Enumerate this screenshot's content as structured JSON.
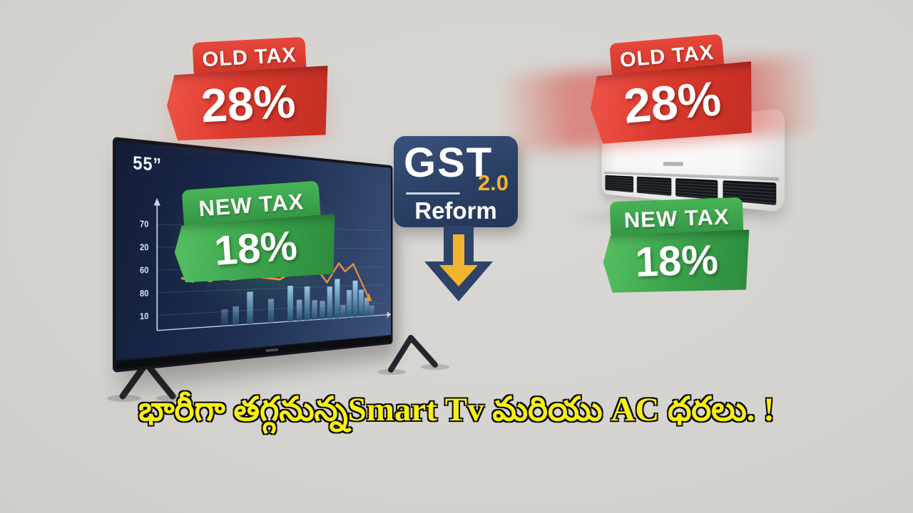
{
  "background_color": "#d6d4d0",
  "caption": {
    "text": "భారీగా తగ్గనున్నSmart Tv మరియు AC ధరలు. !",
    "color": "#f6ee17"
  },
  "gst_badge": {
    "title": "GST",
    "version": "2.0",
    "subtitle": "Reform",
    "arrow_icon": "down-arrow",
    "bg_color": "#2e4368",
    "accent_color": "#f2b42d"
  },
  "tv": {
    "screen_size_label": "55”",
    "old_tax_badge": {
      "label": "OLD TAX",
      "value": "28%",
      "color": "#d93a2e"
    },
    "new_tax_badge": {
      "label": "NEW TAX",
      "value": "18%",
      "color": "#3aa24a"
    }
  },
  "ac": {
    "old_tax_badge": {
      "label": "OLD TAX",
      "value": "28%",
      "color": "#d93a2e"
    },
    "new_tax_badge": {
      "label": "NEW TAX",
      "value": "18%",
      "color": "#3aa24a"
    }
  },
  "chart_data": {
    "type": "bar",
    "title": "",
    "xlabel": "",
    "ylabel": "",
    "y_ticks": [
      {
        "label": "70",
        "pos": 84
      },
      {
        "label": "20",
        "pos": 66
      },
      {
        "label": "60",
        "pos": 48
      },
      {
        "label": "80",
        "pos": 30
      },
      {
        "label": "10",
        "pos": 12
      }
    ],
    "bars": [
      {
        "x": 0.25,
        "v": 14,
        "o": 0.35
      },
      {
        "x": 0.295,
        "v": 16,
        "o": 0.5
      },
      {
        "x": 0.353,
        "v": 28,
        "o": 0.8
      },
      {
        "x": 0.442,
        "v": 21,
        "o": 0.55
      },
      {
        "x": 0.527,
        "v": 32,
        "o": 0.9
      },
      {
        "x": 0.568,
        "v": 19,
        "o": 0.7
      },
      {
        "x": 0.604,
        "v": 31,
        "o": 0.85
      },
      {
        "x": 0.639,
        "v": 18,
        "o": 0.6
      },
      {
        "x": 0.676,
        "v": 17,
        "o": 0.6
      },
      {
        "x": 0.712,
        "v": 30,
        "o": 0.9
      },
      {
        "x": 0.749,
        "v": 37,
        "o": 0.95
      },
      {
        "x": 0.778,
        "v": 12,
        "o": 0.5
      },
      {
        "x": 0.809,
        "v": 26,
        "o": 0.8
      },
      {
        "x": 0.84,
        "v": 35,
        "o": 0.95
      },
      {
        "x": 0.871,
        "v": 26,
        "o": 0.8
      },
      {
        "x": 0.9,
        "v": 18,
        "o": 0.7
      },
      {
        "x": 0.927,
        "v": 10,
        "o": 0.45
      }
    ],
    "line": [
      {
        "x": 0.089,
        "v": 41
      },
      {
        "x": 0.127,
        "v": 38
      },
      {
        "x": 0.16,
        "v": 41
      },
      {
        "x": 0.193,
        "v": 38
      },
      {
        "x": 0.228,
        "v": 41
      },
      {
        "x": 0.274,
        "v": 39
      },
      {
        "x": 0.378,
        "v": 41
      },
      {
        "x": 0.481,
        "v": 38
      },
      {
        "x": 0.537,
        "v": 45
      },
      {
        "x": 0.615,
        "v": 56
      },
      {
        "x": 0.699,
        "v": 34
      },
      {
        "x": 0.757,
        "v": 52
      },
      {
        "x": 0.788,
        "v": 44
      },
      {
        "x": 0.83,
        "v": 51
      },
      {
        "x": 0.905,
        "v": 20
      }
    ],
    "line_color": "#e8923b",
    "bar_color": "#5aa7d6",
    "trend": "declining-with-arrow",
    "grid": true,
    "legend": false
  }
}
